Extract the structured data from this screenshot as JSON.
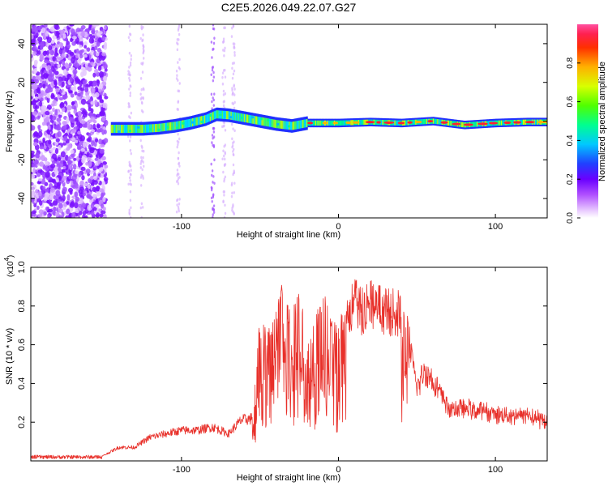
{
  "title": "C2E5.2026.049.22.07.G27",
  "chart_data": [
    {
      "type": "heatmap",
      "xlabel": "Height of straight line (km)",
      "ylabel": "Frequency (Hz)",
      "xlim": [
        -196,
        133
      ],
      "ylim": [
        -50,
        50
      ],
      "x_ticks": [
        -100,
        0,
        100
      ],
      "y_ticks": [
        -40,
        -20,
        0,
        20,
        40
      ],
      "colorbar": {
        "label": "Normalized spectral amplitude",
        "range": [
          0,
          1
        ],
        "ticks": [
          "0.0",
          "0.2",
          "0.4",
          "0.6",
          "0.8"
        ],
        "colors": [
          "#ffffff",
          "#d9a8ff",
          "#b050ff",
          "#7a00ff",
          "#3000ff",
          "#0060ff",
          "#00d0ff",
          "#00ff90",
          "#40ff00",
          "#c8ff00",
          "#ffd000",
          "#ff6000",
          "#ff2030",
          "#ff4080"
        ]
      },
      "ridge": {
        "x": [
          -145,
          -135,
          -125,
          -115,
          -105,
          -95,
          -85,
          -78,
          -70,
          -60,
          -50,
          -40,
          -30,
          -20,
          -10,
          0,
          20,
          40,
          60,
          80,
          100,
          120,
          133
        ],
        "y": [
          -4,
          -4,
          -4,
          -3.5,
          -2.5,
          -1,
          1,
          3.5,
          3,
          1.5,
          0,
          -1.5,
          -2.5,
          -1,
          -1,
          -1,
          -0.5,
          -1,
          0,
          -2,
          -1,
          -0.5,
          -0.5
        ]
      },
      "noise_region": [
        -196,
        -148
      ]
    },
    {
      "type": "line",
      "xlabel": "Height of straight line (km)",
      "ylabel": "SNR (10 * v/v)",
      "y_exponent": "(x10",
      "y_exponent_power": "4",
      "y_exponent_close": ")",
      "xlim": [
        -196,
        133
      ],
      "ylim": [
        0,
        1.0
      ],
      "x_ticks": [
        -100,
        0,
        100
      ],
      "y_ticks": [
        "0.2",
        "0.4",
        "0.6",
        "0.8",
        "1.0"
      ],
      "color": "#e8302a",
      "envelope": {
        "x": [
          -196,
          -150,
          -140,
          -130,
          -120,
          -100,
          -90,
          -80,
          -70,
          -62,
          -55,
          -50,
          -45,
          -40,
          -35,
          -30,
          -25,
          -20,
          -10,
          -5,
          0,
          5,
          10,
          15,
          20,
          30,
          40,
          45,
          50,
          55,
          60,
          65,
          70,
          80,
          90,
          100,
          110,
          120,
          133
        ],
        "y": [
          0.02,
          0.03,
          0.08,
          0.08,
          0.14,
          0.18,
          0.18,
          0.2,
          0.16,
          0.24,
          0.25,
          0.75,
          0.68,
          0.8,
          0.95,
          0.75,
          0.95,
          0.58,
          0.88,
          0.78,
          0.72,
          0.85,
          0.95,
          0.9,
          0.96,
          0.9,
          0.88,
          0.72,
          0.45,
          0.55,
          0.5,
          0.42,
          0.33,
          0.33,
          0.32,
          0.3,
          0.29,
          0.29,
          0.25
        ]
      }
    }
  ]
}
